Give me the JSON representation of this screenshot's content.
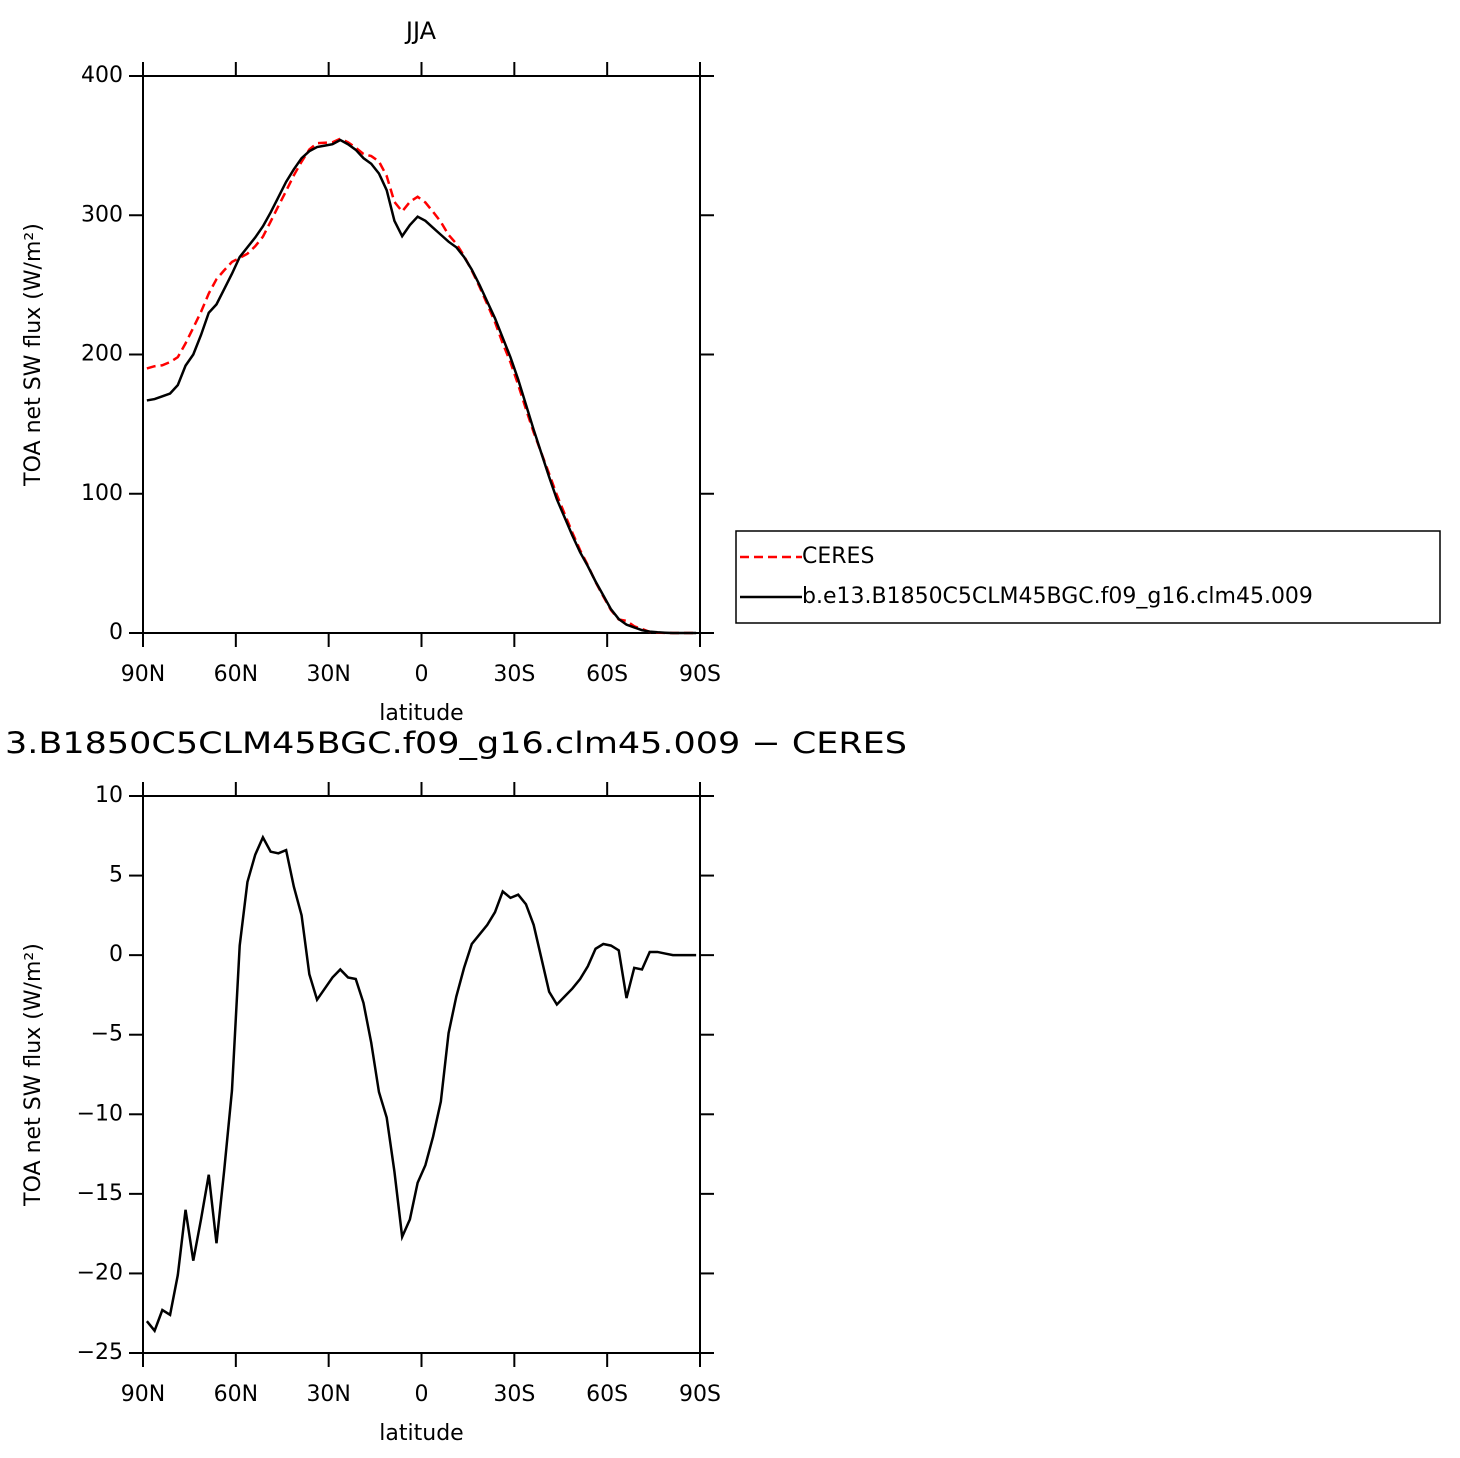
{
  "chart_data": [
    {
      "type": "line",
      "title": "JJA",
      "xlabel": "latitude",
      "ylabel": "TOA net SW flux (W/m²)",
      "x": [
        88.75,
        86.25,
        83.75,
        81.25,
        78.75,
        76.25,
        73.75,
        71.25,
        68.75,
        66.25,
        63.75,
        61.25,
        58.75,
        56.25,
        53.75,
        51.25,
        48.75,
        46.25,
        43.75,
        41.25,
        38.75,
        36.25,
        33.75,
        31.25,
        28.75,
        26.25,
        23.75,
        21.25,
        18.75,
        16.25,
        13.75,
        11.25,
        8.75,
        6.25,
        3.75,
        1.25,
        -1.25,
        -3.75,
        -6.25,
        -8.75,
        -11.25,
        -13.75,
        -16.25,
        -18.75,
        -21.25,
        -23.75,
        -26.25,
        -28.75,
        -31.25,
        -33.75,
        -36.25,
        -38.75,
        -41.25,
        -43.75,
        -46.25,
        -48.75,
        -51.25,
        -53.75,
        -56.25,
        -58.75,
        -61.25,
        -63.75,
        -66.25,
        -68.75,
        -71.25,
        -73.75,
        -76.25,
        -78.75,
        -81.25,
        -83.75,
        -86.25,
        -88.75
      ],
      "series": [
        {
          "name": "CERES",
          "color": "#ff0000",
          "style": "dashed",
          "values": [
            190,
            191.6,
            192.3,
            194.6,
            198.1,
            208,
            219.2,
            230.6,
            243.8,
            254.1,
            260.5,
            266.5,
            269.4,
            272.4,
            277.7,
            284.6,
            295.5,
            306.6,
            317.4,
            328.7,
            338.5,
            347.2,
            351.8,
            352.1,
            352.4,
            354.9,
            352.4,
            348.5,
            344,
            342.5,
            338.6,
            328.2,
            309.6,
            302.7,
            309.6,
            313.3,
            309.2,
            302.4,
            295.2,
            285.9,
            279.6,
            270.8,
            260.3,
            248.7,
            236.1,
            223.3,
            208,
            194.4,
            178.2,
            160.8,
            144.1,
            129.2,
            114.3,
            99.1,
            85.6,
            72.1,
            59.5,
            48.7,
            36.6,
            26.3,
            16.4,
            9.7,
            8.7,
            4.8,
            2.9,
            0.8,
            0.3,
            0.1,
            0,
            0,
            0,
            0
          ]
        },
        {
          "name": "b.e13.B1850C5CLM45BGC.f09_g16.clm45.009",
          "color": "#000000",
          "style": "solid",
          "values": [
            167,
            168,
            170,
            172,
            178,
            192,
            200,
            214,
            230,
            236,
            247,
            258,
            270,
            277,
            284,
            292,
            302,
            313,
            324,
            333,
            341,
            346,
            349,
            350,
            351,
            354,
            351,
            347,
            341,
            337,
            330,
            318,
            296,
            285,
            293,
            299,
            296,
            291,
            286,
            281,
            277,
            270,
            261,
            250,
            238,
            226,
            212,
            198,
            182,
            164,
            146,
            129,
            112,
            96,
            83,
            70,
            58,
            48,
            37,
            27,
            17,
            10,
            6,
            4,
            2,
            1,
            0.5,
            0.2,
            0,
            0,
            0,
            0
          ]
        }
      ],
      "xlim": [
        90,
        -90
      ],
      "xticks": [
        {
          "value": 90,
          "label": "90N"
        },
        {
          "value": 60,
          "label": "60N"
        },
        {
          "value": 30,
          "label": "30N"
        },
        0,
        {
          "value": -30,
          "label": "30S"
        },
        {
          "value": -60,
          "label": "60S"
        },
        {
          "value": -90,
          "label": "90S"
        }
      ],
      "ylim": [
        0,
        400
      ],
      "yticks": [
        0,
        100,
        200,
        300,
        400
      ],
      "legend": "right"
    },
    {
      "type": "line",
      "title": "3.B1850C5CLM45BGC.f09_g16.clm45.009 − CERES",
      "xlabel": "latitude",
      "ylabel": "TOA net SW flux (W/m²)",
      "x": [
        88.75,
        86.25,
        83.75,
        81.25,
        78.75,
        76.25,
        73.75,
        71.25,
        68.75,
        66.25,
        63.75,
        61.25,
        58.75,
        56.25,
        53.75,
        51.25,
        48.75,
        46.25,
        43.75,
        41.25,
        38.75,
        36.25,
        33.75,
        31.25,
        28.75,
        26.25,
        23.75,
        21.25,
        18.75,
        16.25,
        13.75,
        11.25,
        8.75,
        6.25,
        3.75,
        1.25,
        -1.25,
        -3.75,
        -6.25,
        -8.75,
        -11.25,
        -13.75,
        -16.25,
        -18.75,
        -21.25,
        -23.75,
        -26.25,
        -28.75,
        -31.25,
        -33.75,
        -36.25,
        -38.75,
        -41.25,
        -43.75,
        -46.25,
        -48.75,
        -51.25,
        -53.75,
        -56.25,
        -58.75,
        -61.25,
        -63.75,
        -66.25,
        -68.75,
        -71.25,
        -73.75,
        -76.25,
        -78.75,
        -81.25,
        -83.75,
        -86.25,
        -88.75
      ],
      "values": [
        -23,
        -23.6,
        -22.3,
        -22.6,
        -20.1,
        -16,
        -19.2,
        -16.6,
        -13.8,
        -18.1,
        -13.5,
        -8.5,
        0.6,
        4.6,
        6.3,
        7.4,
        6.5,
        6.4,
        6.6,
        4.3,
        2.5,
        -1.2,
        -2.8,
        -2.1,
        -1.4,
        -0.9,
        -1.4,
        -1.5,
        -3,
        -5.5,
        -8.6,
        -10.2,
        -13.6,
        -17.7,
        -16.6,
        -14.3,
        -13.2,
        -11.4,
        -9.2,
        -4.9,
        -2.6,
        -0.8,
        0.7,
        1.3,
        1.9,
        2.7,
        4,
        3.6,
        3.8,
        3.2,
        1.9,
        -0.2,
        -2.3,
        -3.1,
        -2.6,
        -2.1,
        -1.5,
        -0.7,
        0.4,
        0.7,
        0.6,
        0.3,
        -2.7,
        -0.8,
        -0.9,
        0.2,
        0.2,
        0.1,
        0,
        0,
        0,
        0
      ],
      "color": "#000000",
      "xlim": [
        90,
        -90
      ],
      "xticks": [
        {
          "value": 90,
          "label": "90N"
        },
        {
          "value": 60,
          "label": "60N"
        },
        {
          "value": 30,
          "label": "30N"
        },
        0,
        {
          "value": -30,
          "label": "30S"
        },
        {
          "value": -60,
          "label": "60S"
        },
        {
          "value": -90,
          "label": "90S"
        }
      ],
      "ylim": [
        -25,
        10
      ],
      "yticks": [
        10,
        5,
        0,
        {
          "value": -5,
          "label": "−5"
        },
        {
          "value": -10,
          "label": "−10"
        },
        {
          "value": -15,
          "label": "−15"
        },
        {
          "value": -20,
          "label": "−20"
        },
        {
          "value": -25,
          "label": "−25"
        }
      ]
    }
  ]
}
